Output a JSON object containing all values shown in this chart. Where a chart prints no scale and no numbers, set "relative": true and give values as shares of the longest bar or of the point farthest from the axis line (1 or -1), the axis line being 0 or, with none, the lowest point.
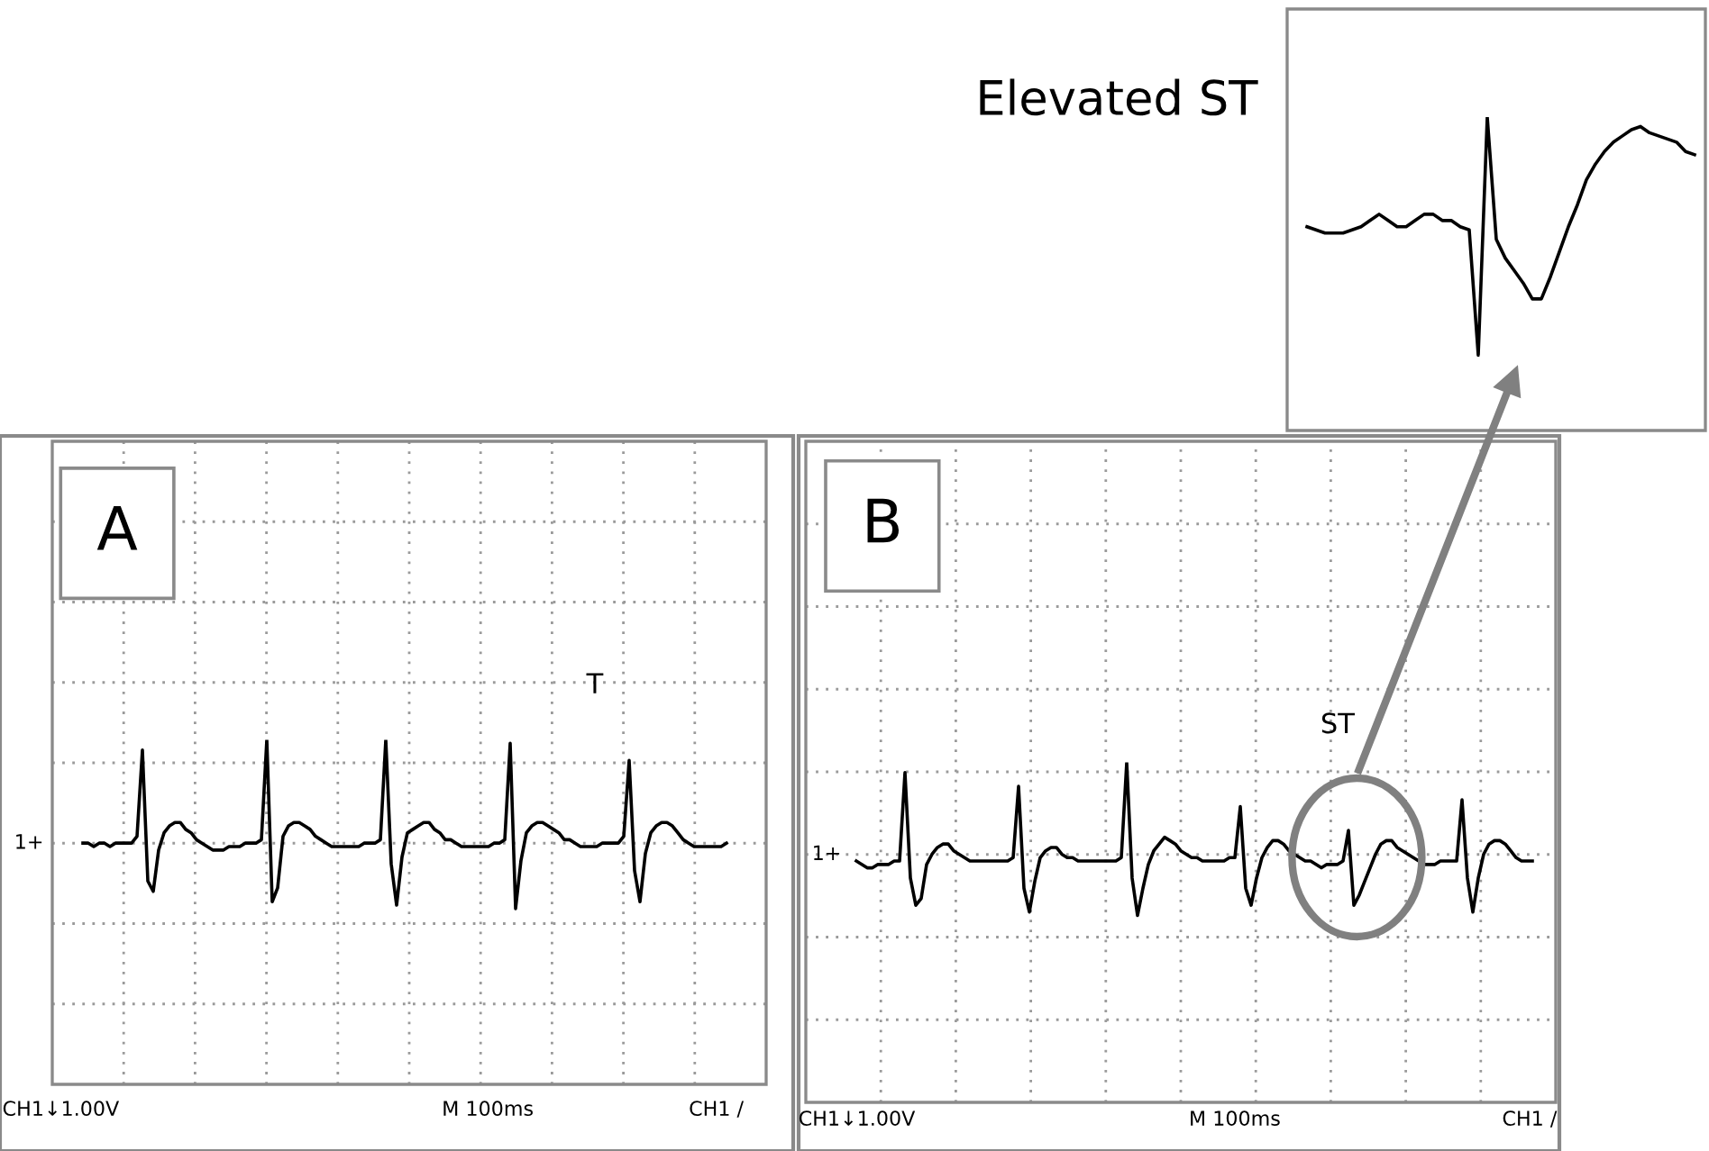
{
  "chart_data": [
    {
      "type": "line",
      "relative": true,
      "annotations": [
        "A",
        "T",
        "1+",
        "CH1↓1.00V",
        "M 100ms",
        "CH1 /"
      ],
      "categories": [
        null,
        null,
        null,
        null,
        null,
        null,
        null,
        null,
        null,
        null,
        null,
        null,
        null,
        null,
        null,
        null,
        null,
        null,
        null,
        null,
        null,
        null,
        null,
        null,
        null,
        null,
        null,
        null,
        null,
        null,
        null,
        null,
        null,
        null,
        null,
        null,
        null,
        null,
        null,
        null,
        null,
        null,
        null,
        null,
        null,
        null,
        null,
        null,
        null,
        null,
        null,
        null,
        null,
        null,
        null,
        null,
        null,
        null,
        null,
        null,
        null,
        null,
        null,
        null,
        null,
        null,
        null,
        null,
        null,
        null,
        null,
        null,
        null,
        null,
        null,
        null,
        null,
        null,
        null,
        null,
        null,
        null,
        null,
        null,
        null,
        null,
        null,
        null,
        null,
        null,
        null,
        null,
        null,
        null,
        null,
        null,
        null,
        null,
        null,
        null,
        null,
        null,
        null,
        null,
        null,
        null,
        null,
        null,
        null,
        null,
        null,
        null,
        null,
        null,
        null,
        null,
        null,
        null,
        null,
        null
      ],
      "series": [
        {
          "color": "#000000",
          "values": [
            0.7,
            0.7,
            0.69,
            0.7,
            0.7,
            0.69,
            0.7,
            0.7,
            0.7,
            0.7,
            0.72,
            0.97,
            0.59,
            0.56,
            0.68,
            0.73,
            0.75,
            0.76,
            0.76,
            0.74,
            0.73,
            0.71,
            0.7,
            0.69,
            0.68,
            0.68,
            0.68,
            0.69,
            0.69,
            0.69,
            0.7,
            0.7,
            0.7,
            0.71,
            1.0,
            0.53,
            0.57,
            0.72,
            0.75,
            0.76,
            0.76,
            0.75,
            0.74,
            0.72,
            0.71,
            0.7,
            0.69,
            0.69,
            0.69,
            0.69,
            0.69,
            0.69,
            0.7,
            0.7,
            0.7,
            0.71,
            1.0,
            0.64,
            0.52,
            0.66,
            0.73,
            0.74,
            0.75,
            0.76,
            0.76,
            0.74,
            0.73,
            0.71,
            0.71,
            0.7,
            0.69,
            0.69,
            0.69,
            0.69,
            0.69,
            0.69,
            0.7,
            0.7,
            0.71,
            0.99,
            0.51,
            0.65,
            0.73,
            0.75,
            0.76,
            0.76,
            0.75,
            0.74,
            0.73,
            0.71,
            0.71,
            0.7,
            0.69,
            0.69,
            0.69,
            0.69,
            0.7,
            0.7,
            0.7,
            0.7,
            0.72,
            0.94,
            0.62,
            0.53,
            0.67,
            0.73,
            0.75,
            0.76,
            0.76,
            0.75,
            0.73,
            0.71,
            0.7,
            0.69,
            0.69,
            0.69,
            0.69,
            0.69,
            0.69,
            0.7
          ]
        }
      ],
      "grid": true,
      "line_style": "solid",
      "marker": "none"
    },
    {
      "type": "line",
      "relative": true,
      "annotations": [
        "B",
        "ST",
        "1+",
        "CH1↓1.00V",
        "M 100ms",
        "CH1 /"
      ],
      "categories": [
        null,
        null,
        null,
        null,
        null,
        null,
        null,
        null,
        null,
        null,
        null,
        null,
        null,
        null,
        null,
        null,
        null,
        null,
        null,
        null,
        null,
        null,
        null,
        null,
        null,
        null,
        null,
        null,
        null,
        null,
        null,
        null,
        null,
        null,
        null,
        null,
        null,
        null,
        null,
        null,
        null,
        null,
        null,
        null,
        null,
        null,
        null,
        null,
        null,
        null,
        null,
        null,
        null,
        null,
        null,
        null,
        null,
        null,
        null,
        null,
        null,
        null,
        null,
        null,
        null,
        null,
        null,
        null,
        null,
        null,
        null,
        null,
        null,
        null,
        null,
        null,
        null,
        null,
        null,
        null,
        null,
        null,
        null,
        null,
        null,
        null,
        null,
        null,
        null,
        null,
        null,
        null,
        null,
        null,
        null,
        null,
        null,
        null,
        null,
        null,
        null,
        null,
        null,
        null,
        null,
        null,
        null,
        null,
        null,
        null,
        null,
        null,
        null,
        null,
        null,
        null,
        null,
        null,
        null,
        null,
        null,
        null,
        null,
        null,
        null,
        null
      ],
      "series": [
        {
          "color": "#000000",
          "values": [
            0.71,
            0.7,
            0.69,
            0.69,
            0.7,
            0.7,
            0.7,
            0.71,
            0.71,
            0.97,
            0.66,
            0.58,
            0.6,
            0.7,
            0.73,
            0.75,
            0.76,
            0.76,
            0.74,
            0.73,
            0.72,
            0.71,
            0.71,
            0.71,
            0.71,
            0.71,
            0.71,
            0.71,
            0.71,
            0.72,
            0.93,
            0.63,
            0.56,
            0.65,
            0.72,
            0.74,
            0.75,
            0.75,
            0.73,
            0.72,
            0.72,
            0.71,
            0.71,
            0.71,
            0.71,
            0.71,
            0.71,
            0.71,
            0.71,
            0.72,
            1.0,
            0.66,
            0.55,
            0.63,
            0.7,
            0.74,
            0.76,
            0.78,
            0.77,
            0.76,
            0.74,
            0.73,
            0.72,
            0.72,
            0.71,
            0.71,
            0.71,
            0.71,
            0.71,
            0.72,
            0.72,
            0.87,
            0.63,
            0.58,
            0.66,
            0.72,
            0.75,
            0.77,
            0.77,
            0.76,
            0.74,
            0.73,
            0.72,
            0.71,
            0.71,
            0.7,
            0.69,
            0.7,
            0.7,
            0.7,
            0.71,
            0.8,
            0.58,
            0.61,
            0.65,
            0.69,
            0.73,
            0.76,
            0.77,
            0.77,
            0.75,
            0.74,
            0.73,
            0.72,
            0.71,
            0.7,
            0.7,
            0.7,
            0.71,
            0.71,
            0.71,
            0.71,
            0.89,
            0.66,
            0.56,
            0.66,
            0.73,
            0.76,
            0.77,
            0.77,
            0.76,
            0.74,
            0.72,
            0.71,
            0.71,
            0.71
          ]
        }
      ],
      "grid": true,
      "line_style": "solid",
      "marker": "none"
    },
    {
      "type": "line",
      "title": "Elevated ST",
      "relative": true,
      "categories": [
        null,
        null,
        null,
        null,
        null,
        null,
        null,
        null,
        null,
        null,
        null,
        null,
        null,
        null,
        null,
        null,
        null,
        null,
        null,
        null,
        null,
        null,
        null,
        null,
        null,
        null,
        null,
        null,
        null,
        null,
        null,
        null,
        null,
        null,
        null,
        null,
        null,
        null,
        null,
        null,
        null,
        null,
        null,
        null
      ],
      "series": [
        {
          "color": "#000000",
          "values": [
            0.65,
            0.64,
            0.63,
            0.63,
            0.63,
            0.64,
            0.65,
            0.67,
            0.69,
            0.67,
            0.65,
            0.65,
            0.67,
            0.69,
            0.69,
            0.67,
            0.67,
            0.65,
            0.64,
            0.24,
            1,
            0.61,
            0.55,
            0.51,
            0.47,
            0.42,
            0.42,
            0.49,
            0.57,
            0.65,
            0.72,
            0.8,
            0.85,
            0.89,
            0.92,
            0.94,
            0.96,
            0.97,
            0.95,
            0.94,
            0.93,
            0.92,
            0.89,
            0.88
          ]
        }
      ],
      "line_style": "solid",
      "marker": "none"
    }
  ]
}
